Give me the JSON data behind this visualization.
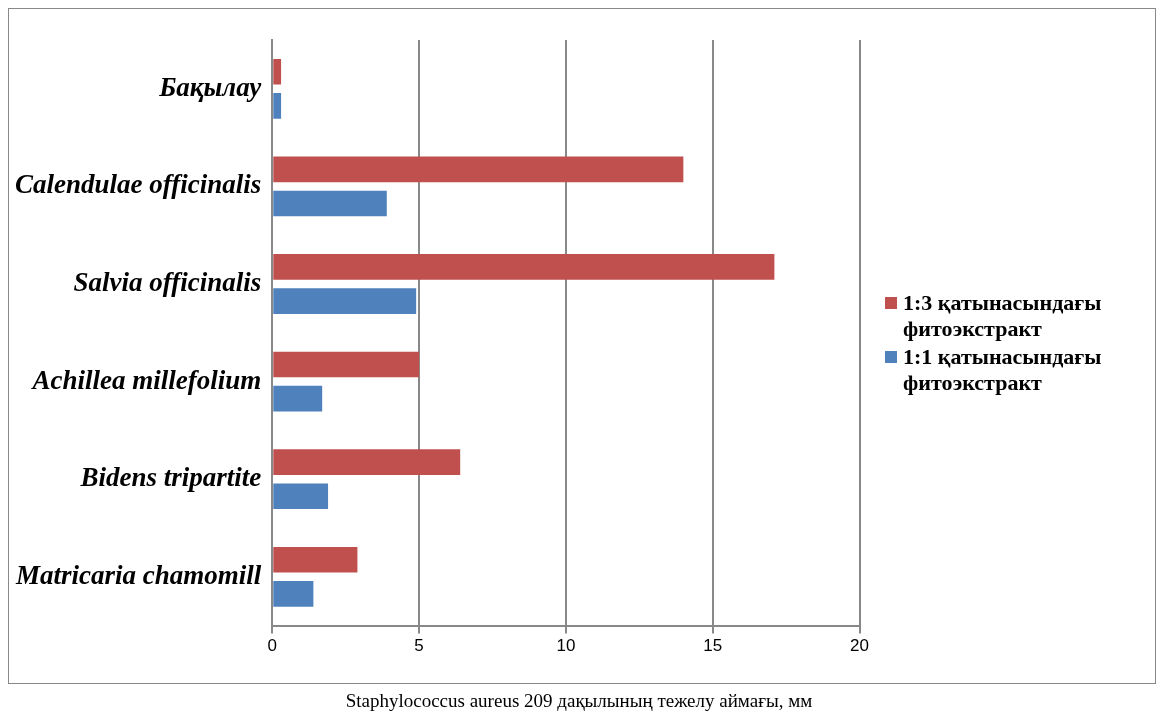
{
  "chart_data": {
    "type": "bar",
    "orientation": "horizontal",
    "categories": [
      "Бақылау",
      "Calendulae officinalis",
      "Salvia officinalis",
      "Achillea millefolium",
      "Bidens tripartite",
      "Matricaria chamomill"
    ],
    "series": [
      {
        "name": "1:3 қатынасындағы фитоэкстракт",
        "color": "#c0504d",
        "values": [
          0.3,
          14.0,
          17.1,
          5.0,
          6.4,
          2.9
        ]
      },
      {
        "name": "1:1 қатынасындағы фитоэкстракт",
        "color": "#4f81bd",
        "values": [
          0.3,
          3.9,
          4.9,
          1.7,
          1.9,
          1.4
        ]
      }
    ],
    "xlim": [
      0,
      20
    ],
    "xticks": [
      0,
      5,
      10,
      15,
      20
    ],
    "xlabel": "Staphylococcus aureus 209 дақылының тежелу аймағы, мм",
    "grid": "x",
    "legend": "right"
  }
}
